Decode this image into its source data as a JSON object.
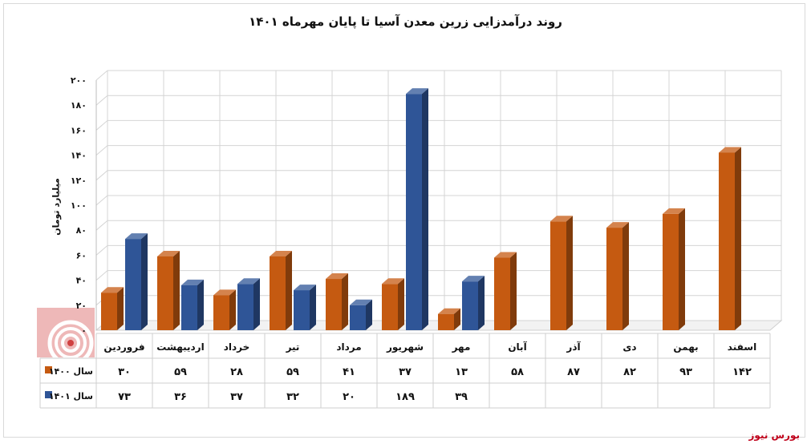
{
  "chart_data": {
    "type": "bar",
    "title": "روند درآمدزایی زرین معدن آسیا تا پایان مهرماه ۱۴۰۱",
    "ylabel": "میلیارد تومان",
    "ylim": [
      0,
      200
    ],
    "y_ticks": [
      "۰",
      "۲۰",
      "۴۰",
      "۶۰",
      "۸۰",
      "۱۰۰",
      "۱۲۰",
      "۱۴۰",
      "۱۶۰",
      "۱۸۰",
      "۲۰۰"
    ],
    "grid": true,
    "legend_placement": "bottom (data table)",
    "categories": [
      "فروردین",
      "اردیبهشت",
      "خرداد",
      "تیر",
      "مرداد",
      "شهریور",
      "مهر",
      "آبان",
      "آذر",
      "دی",
      "بهمن",
      "اسفند"
    ],
    "series": [
      {
        "name": "سال ۱۴۰۰",
        "color": "#C55A11",
        "values": [
          30,
          59,
          28,
          59,
          41,
          37,
          13,
          58,
          87,
          82,
          93,
          142
        ],
        "labels": [
          "۳۰",
          "۵۹",
          "۲۸",
          "۵۹",
          "۴۱",
          "۳۷",
          "۱۳",
          "۵۸",
          "۸۷",
          "۸۲",
          "۹۳",
          "۱۴۲"
        ]
      },
      {
        "name": "سال ۱۴۰۱",
        "color": "#2F5597",
        "values": [
          73,
          36,
          37,
          32,
          20,
          189,
          39,
          null,
          null,
          null,
          null,
          null
        ],
        "labels": [
          "۷۳",
          "۳۶",
          "۳۷",
          "۳۲",
          "۲۰",
          "۱۸۹",
          "۳۹",
          "",
          "",
          "",
          "",
          ""
        ]
      }
    ]
  },
  "watermark": {
    "colors": [
      "#e8a0a0",
      "#d04040"
    ]
  },
  "brand": "بورس نیوز"
}
